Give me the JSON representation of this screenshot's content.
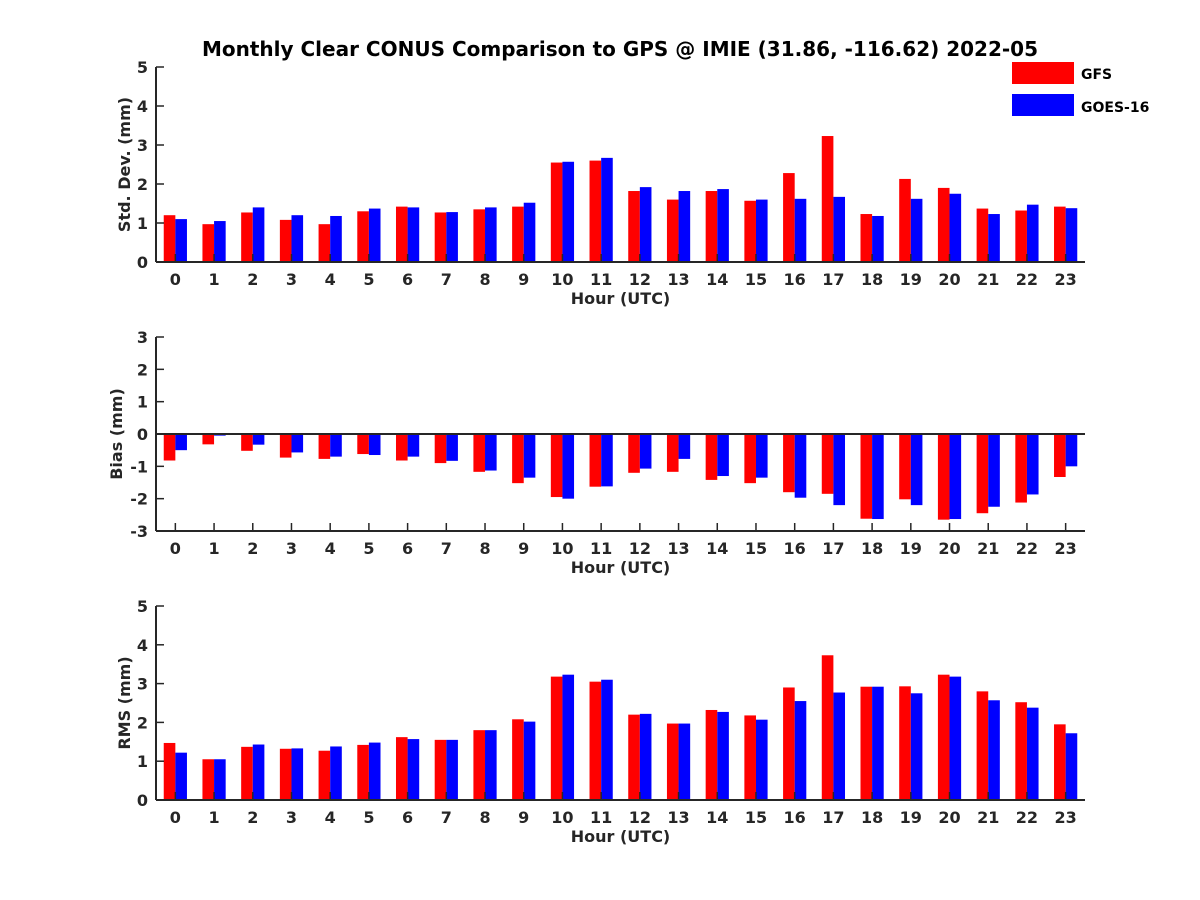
{
  "title": "Monthly Clear CONUS Comparison to GPS @ IMIE (31.86, -116.62) 2022-05",
  "legend": [
    {
      "name": "GFS",
      "color": "#ff0000"
    },
    {
      "name": "GOES-16",
      "color": "#0000ff"
    }
  ],
  "chart_data": [
    {
      "type": "bar",
      "xlabel": "Hour (UTC)",
      "ylabel": "Std. Dev. (mm)",
      "ylim": [
        0,
        5
      ],
      "yticks": [
        0,
        1,
        2,
        3,
        4,
        5
      ],
      "categories": [
        "0",
        "1",
        "2",
        "3",
        "4",
        "5",
        "6",
        "7",
        "8",
        "9",
        "10",
        "11",
        "12",
        "13",
        "14",
        "15",
        "16",
        "17",
        "18",
        "19",
        "20",
        "21",
        "22",
        "23"
      ],
      "series": [
        {
          "name": "GFS",
          "color": "#ff0000",
          "values": [
            1.2,
            0.97,
            1.27,
            1.08,
            0.97,
            1.3,
            1.42,
            1.27,
            1.35,
            1.42,
            2.55,
            2.6,
            1.82,
            1.6,
            1.82,
            1.57,
            2.28,
            3.23,
            1.23,
            2.13,
            1.9,
            1.37,
            1.32,
            1.42
          ]
        },
        {
          "name": "GOES-16",
          "color": "#0000ff",
          "values": [
            1.1,
            1.05,
            1.4,
            1.2,
            1.18,
            1.37,
            1.4,
            1.28,
            1.4,
            1.52,
            2.57,
            2.67,
            1.92,
            1.82,
            1.87,
            1.6,
            1.62,
            1.67,
            1.18,
            1.62,
            1.75,
            1.23,
            1.47,
            1.38
          ]
        }
      ]
    },
    {
      "type": "bar",
      "xlabel": "Hour (UTC)",
      "ylabel": "Bias (mm)",
      "ylim": [
        -3,
        3
      ],
      "yticks": [
        -3,
        -2,
        -1,
        0,
        1,
        2,
        3
      ],
      "categories": [
        "0",
        "1",
        "2",
        "3",
        "4",
        "5",
        "6",
        "7",
        "8",
        "9",
        "10",
        "11",
        "12",
        "13",
        "14",
        "15",
        "16",
        "17",
        "18",
        "19",
        "20",
        "21",
        "22",
        "23"
      ],
      "series": [
        {
          "name": "GFS",
          "color": "#ff0000",
          "values": [
            -0.82,
            -0.32,
            -0.52,
            -0.73,
            -0.77,
            -0.62,
            -0.82,
            -0.9,
            -1.17,
            -1.52,
            -1.95,
            -1.63,
            -1.2,
            -1.17,
            -1.42,
            -1.52,
            -1.8,
            -1.85,
            -2.62,
            -2.02,
            -2.65,
            -2.45,
            -2.12,
            -1.33
          ]
        },
        {
          "name": "GOES-16",
          "color": "#0000ff",
          "values": [
            -0.5,
            -0.05,
            -0.33,
            -0.57,
            -0.7,
            -0.65,
            -0.7,
            -0.83,
            -1.13,
            -1.35,
            -2.0,
            -1.62,
            -1.07,
            -0.77,
            -1.3,
            -1.35,
            -1.97,
            -2.2,
            -2.63,
            -2.2,
            -2.63,
            -2.25,
            -1.87,
            -1.0
          ]
        }
      ]
    },
    {
      "type": "bar",
      "xlabel": "Hour (UTC)",
      "ylabel": "RMS (mm)",
      "ylim": [
        0,
        5
      ],
      "yticks": [
        0,
        1,
        2,
        3,
        4,
        5
      ],
      "categories": [
        "0",
        "1",
        "2",
        "3",
        "4",
        "5",
        "6",
        "7",
        "8",
        "9",
        "10",
        "11",
        "12",
        "13",
        "14",
        "15",
        "16",
        "17",
        "18",
        "19",
        "20",
        "21",
        "22",
        "23"
      ],
      "series": [
        {
          "name": "GFS",
          "color": "#ff0000",
          "values": [
            1.47,
            1.05,
            1.37,
            1.32,
            1.27,
            1.42,
            1.62,
            1.55,
            1.8,
            2.08,
            3.18,
            3.05,
            2.2,
            1.97,
            2.32,
            2.18,
            2.9,
            3.73,
            2.92,
            2.93,
            3.23,
            2.8,
            2.52,
            1.95
          ]
        },
        {
          "name": "GOES-16",
          "color": "#0000ff",
          "values": [
            1.22,
            1.05,
            1.43,
            1.33,
            1.38,
            1.48,
            1.57,
            1.55,
            1.8,
            2.02,
            3.23,
            3.1,
            2.22,
            1.97,
            2.27,
            2.07,
            2.55,
            2.77,
            2.92,
            2.75,
            3.18,
            2.57,
            2.38,
            1.72
          ]
        }
      ]
    }
  ]
}
